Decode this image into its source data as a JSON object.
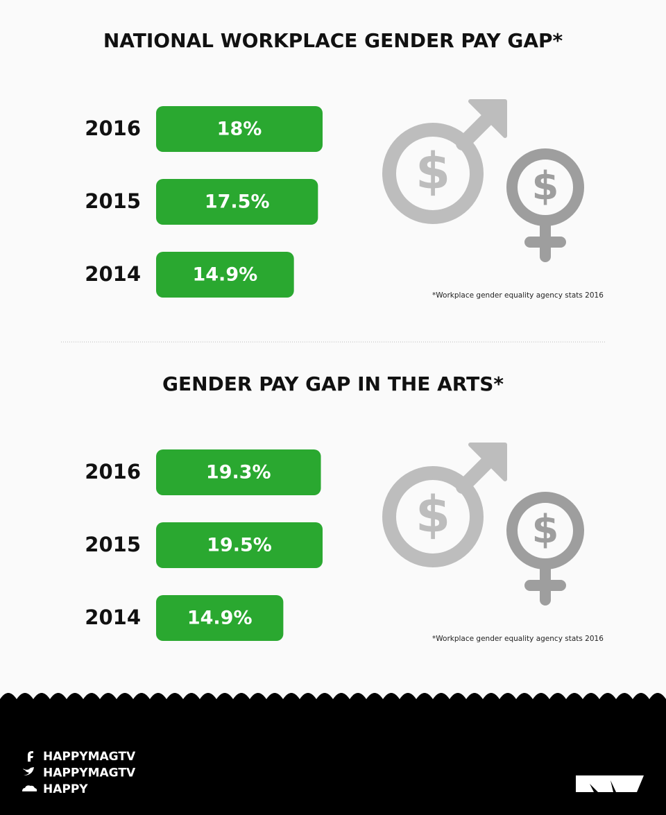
{
  "chart_data": [
    {
      "type": "bar",
      "title": "NATIONAL WORKPLACE GENDER PAY GAP*",
      "categories": [
        "2016",
        "2015",
        "2014"
      ],
      "values": [
        18,
        17.5,
        14.9
      ],
      "value_labels": [
        "18%",
        "17.5%",
        "14.9%"
      ],
      "color": "#2aa830",
      "annotation": "*Workplace gender equality agency stats 2016"
    },
    {
      "type": "bar",
      "title": "GENDER PAY GAP IN THE ARTS*",
      "categories": [
        "2016",
        "2015",
        "2014"
      ],
      "values": [
        19.3,
        19.5,
        14.9
      ],
      "value_labels": [
        "19.3%",
        "19.5%",
        "14.9%"
      ],
      "color": "#2aa830",
      "annotation": "*Workplace gender equality agency stats 2016"
    }
  ],
  "footer": {
    "social": [
      "HAPPYMAGTV",
      "HAPPYMAGTV",
      "HAPPY"
    ]
  }
}
